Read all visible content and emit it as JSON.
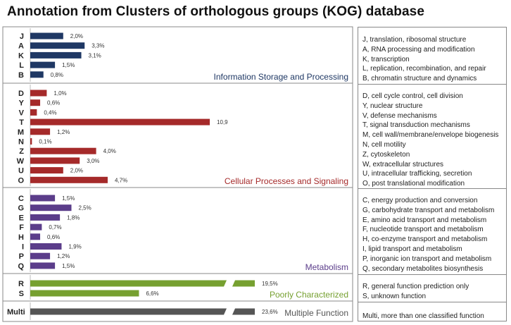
{
  "title": "Annotation from Clusters of orthologous groups (KOG) database",
  "chart_data": {
    "type": "bar",
    "orientation": "horizontal",
    "groups": [
      {
        "name": "Information Storage and Processing",
        "color": "#1f3864",
        "categories": [
          "J",
          "A",
          "K",
          "L",
          "B"
        ],
        "values": [
          2.0,
          3.3,
          3.1,
          1.5,
          0.8
        ],
        "labels": [
          "2,0%",
          "3,3%",
          "3,1%",
          "1,5%",
          "0,8%"
        ]
      },
      {
        "name": "Cellular Processes and Signaling",
        "color": "#a52a2a",
        "categories": [
          "D",
          "Y",
          "V",
          "T",
          "M",
          "N",
          "Z",
          "W",
          "U",
          "O"
        ],
        "values": [
          1.0,
          0.6,
          0.4,
          10.9,
          1.2,
          0.1,
          4.0,
          3.0,
          2.0,
          4.7
        ],
        "labels": [
          "1,0%",
          "0,6%",
          "0,4%",
          "10,9",
          "1,2%",
          "0,1%",
          "4,0%",
          "3,0%",
          "2,0%",
          "4,7%"
        ]
      },
      {
        "name": "Metabolism",
        "color": "#5b3d8a",
        "categories": [
          "C",
          "G",
          "E",
          "F",
          "H",
          "I",
          "P",
          "Q"
        ],
        "values": [
          1.5,
          2.5,
          1.8,
          0.7,
          0.6,
          1.9,
          1.2,
          1.5
        ],
        "labels": [
          "1,5%",
          "2,5%",
          "1,8%",
          "0,7%",
          "0,6%",
          "1,9%",
          "1,2%",
          "1,5%"
        ]
      },
      {
        "name": "Poorly Characterized",
        "color": "#76a030",
        "categories": [
          "R",
          "S"
        ],
        "values": [
          19.5,
          6.6
        ],
        "labels": [
          "19,5%",
          "6,6%"
        ]
      },
      {
        "name": "Multiple Function",
        "color": "#555555",
        "categories": [
          "Multi"
        ],
        "values": [
          23.6
        ],
        "labels": [
          "23,6%"
        ]
      }
    ],
    "axis_break": true,
    "legend": [
      [
        "J, translation, ribosomal structure",
        "A, RNA processing and modification",
        "K, transcription",
        "L, replication, recombination, and repair",
        "B, chromatin structure and dynamics"
      ],
      [
        "D, cell cycle control, cell division",
        "Y, nuclear structure",
        "V, defense mechanisms",
        "T, signal transduction mechanisms",
        "M, cell wall/membrane/envelope biogenesis",
        "N, cell motility",
        "Z, cytoskeleton",
        "W, extracellular structures",
        "U, intracellular trafficking, secretion",
        "O, post translational modification"
      ],
      [
        "C, energy production and conversion",
        "G, carbohydrate transport and metabolism",
        "E, amino acid transport and metabolism",
        "F, nucleotide transport and metabolism",
        "H, co-enzyme transport and metabolism",
        "I, lipid transport and metabolism",
        "P, inorganic ion transport and metabolism",
        "Q, secondary metabolites biosynthesis"
      ],
      [
        "R, general function prediction only",
        "S, unknown function"
      ],
      [
        "Multi, more than one classified function"
      ]
    ]
  }
}
